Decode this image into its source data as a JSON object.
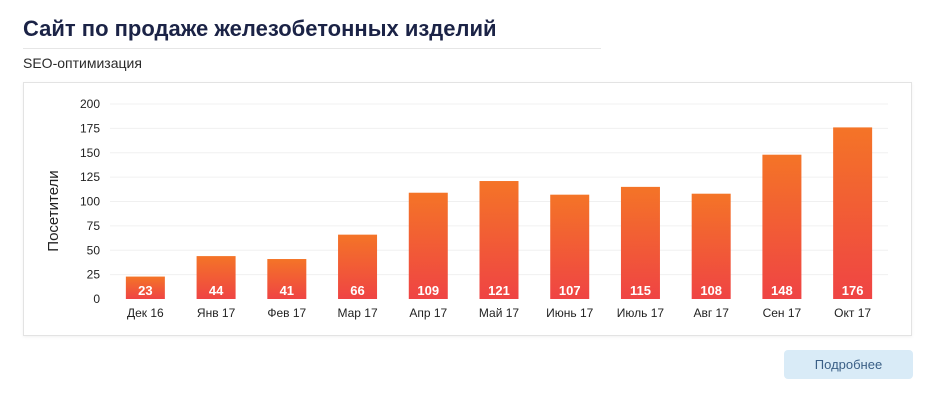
{
  "header": {
    "title": "Сайт по продаже железобетонных изделий",
    "subtitle": "SEO-оптимизация"
  },
  "actions": {
    "more_label": "Подробнее"
  },
  "colors": {
    "bar_top": "#f47427",
    "bar_bottom": "#ef4444",
    "title": "#1b2346",
    "button_bg": "#d9ebf7"
  },
  "chart_data": {
    "type": "bar",
    "title": "",
    "xlabel": "",
    "ylabel": "Посетители",
    "ylim": [
      0,
      200
    ],
    "yticks": [
      0,
      25,
      50,
      75,
      100,
      125,
      150,
      175,
      200
    ],
    "grid": true,
    "legend": "none",
    "categories": [
      "Дек 16",
      "Янв 17",
      "Фев 17",
      "Мар 17",
      "Апр 17",
      "Май 17",
      "Июнь 17",
      "Июль 17",
      "Авг 17",
      "Сен 17",
      "Окт 17"
    ],
    "values": [
      23,
      44,
      41,
      66,
      109,
      121,
      107,
      115,
      108,
      148,
      176
    ],
    "data_labels": [
      "23",
      "44",
      "41",
      "66",
      "109",
      "121",
      "107",
      "115",
      "108",
      "148",
      "176"
    ]
  }
}
